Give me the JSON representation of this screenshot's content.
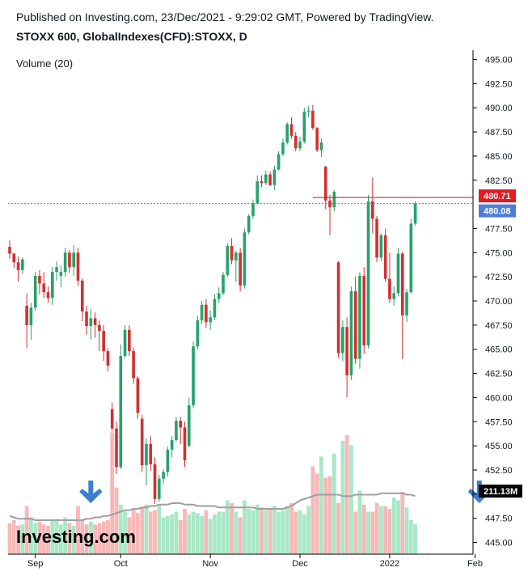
{
  "header": {
    "published": "Published on Investing.com, 23/Dec/2021 - 9:29:02 GMT, Powered by TradingView.",
    "symbol": "STOXX 600, GlobalIndexes(CFD):STOXX, D"
  },
  "colors": {
    "up": "#26a269",
    "down": "#d32f2f",
    "vol_up": "#a8e8c6",
    "vol_down": "#f7b8b8",
    "ma": "#a0a0a0",
    "arrow": "#3a7fd0",
    "tag_red": "#e31b23",
    "tag_blue": "#4f7ed8",
    "tag_black": "#000000"
  },
  "chart_data": {
    "type": "candlestick",
    "volume_label": "Volume (20)",
    "y_ticks": [
      "495.00",
      "492.50",
      "490.00",
      "487.50",
      "485.00",
      "482.50",
      "480.71",
      "480.08",
      "477.50",
      "475.00",
      "472.50",
      "470.00",
      "467.50",
      "465.00",
      "462.50",
      "460.00",
      "457.50",
      "455.00",
      "452.50",
      "450.00",
      "447.50",
      "445.00"
    ],
    "y_min": 445.0,
    "y_max": 495.0,
    "x_ticks": [
      {
        "label": "Sep",
        "index": 6
      },
      {
        "label": "Oct",
        "index": 26
      },
      {
        "label": "Nov",
        "index": 47
      },
      {
        "label": "Dec",
        "index": 68
      },
      {
        "label": "2022",
        "index": 89
      },
      {
        "label": "Feb",
        "index": 109
      }
    ],
    "last_price": {
      "value": 480.08,
      "label": "480.08"
    },
    "high_line": {
      "value": 480.71,
      "label": "480.71"
    },
    "volume_tag": {
      "label": "211.13M"
    },
    "logo": "Investing.com",
    "candles": [
      [
        475.6,
        476.3,
        474.4,
        474.9
      ],
      [
        474.9,
        475.0,
        473.4,
        474.0
      ],
      [
        474.0,
        474.6,
        472.0,
        473.2
      ],
      [
        473.2,
        474.5,
        472.8,
        474.3
      ],
      [
        469.5,
        470.8,
        465.1,
        467.5
      ],
      [
        467.5,
        469.8,
        466.0,
        469.3
      ],
      [
        469.3,
        473.0,
        469.0,
        472.6
      ],
      [
        472.6,
        473.2,
        470.7,
        471.8
      ],
      [
        471.8,
        473.0,
        470.3,
        470.9
      ],
      [
        470.9,
        471.5,
        469.8,
        470.3
      ],
      [
        470.3,
        473.5,
        469.6,
        473.0
      ],
      [
        473.0,
        474.1,
        472.1,
        473.5
      ],
      [
        472.6,
        473.7,
        471.4,
        473.0
      ],
      [
        473.0,
        475.5,
        472.5,
        475.0
      ],
      [
        475.0,
        475.3,
        472.9,
        473.5
      ],
      [
        473.5,
        475.8,
        472.6,
        475.0
      ],
      [
        475.0,
        475.5,
        471.6,
        472.1
      ],
      [
        472.1,
        472.3,
        467.9,
        468.9
      ],
      [
        468.9,
        469.5,
        466.5,
        467.4
      ],
      [
        467.4,
        469.2,
        466.0,
        468.2
      ],
      [
        468.2,
        468.8,
        466.2,
        467.5
      ],
      [
        467.5,
        468.0,
        464.8,
        466.9
      ],
      [
        466.9,
        467.5,
        463.8,
        464.8
      ],
      [
        464.8,
        465.1,
        462.7,
        463.3
      ],
      [
        458.8,
        459.5,
        456.5,
        456.8
      ],
      [
        456.8,
        457.5,
        452.1,
        452.8
      ],
      [
        452.8,
        465.5,
        452.6,
        464.3
      ],
      [
        464.3,
        467.5,
        464.1,
        467.0
      ],
      [
        467.0,
        467.5,
        464.3,
        464.8
      ],
      [
        464.8,
        465.2,
        461.4,
        462.0
      ],
      [
        462.0,
        462.2,
        457.8,
        458.4
      ],
      [
        457.8,
        458.2,
        452.3,
        453.0
      ],
      [
        453.0,
        455.8,
        450.9,
        455.2
      ],
      [
        455.2,
        456.0,
        452.4,
        453.1
      ],
      [
        453.1,
        453.8,
        449.0,
        449.5
      ],
      [
        449.5,
        452.0,
        449.2,
        451.6
      ],
      [
        451.6,
        452.6,
        451.0,
        452.3
      ],
      [
        452.3,
        454.9,
        451.8,
        454.6
      ],
      [
        454.6,
        456.0,
        453.8,
        455.6
      ],
      [
        455.6,
        458.0,
        455.4,
        457.6
      ],
      [
        457.6,
        458.0,
        455.2,
        456.9
      ],
      [
        456.9,
        457.5,
        452.8,
        453.5
      ],
      [
        455.0,
        460.0,
        454.8,
        459.2
      ],
      [
        459.2,
        465.8,
        458.9,
        465.3
      ],
      [
        465.3,
        468.5,
        465.0,
        468.0
      ],
      [
        468.0,
        470.0,
        467.6,
        469.6
      ],
      [
        469.6,
        470.2,
        467.2,
        467.8
      ],
      [
        467.8,
        469.0,
        467.0,
        468.3
      ],
      [
        468.3,
        470.7,
        468.0,
        470.2
      ],
      [
        470.2,
        471.4,
        469.8,
        470.8
      ],
      [
        470.8,
        473.0,
        470.6,
        472.7
      ],
      [
        472.7,
        476.0,
        472.5,
        475.7
      ],
      [
        475.7,
        476.5,
        473.8,
        474.2
      ],
      [
        474.2,
        475.2,
        472.0,
        475.0
      ],
      [
        475.0,
        475.5,
        471.0,
        471.6
      ],
      [
        471.6,
        477.5,
        471.3,
        477.1
      ],
      [
        477.1,
        479.0,
        476.9,
        478.8
      ],
      [
        478.8,
        480.5,
        478.5,
        480.1
      ],
      [
        480.1,
        483.0,
        480.0,
        482.4
      ],
      [
        482.4,
        483.0,
        481.8,
        482.2
      ],
      [
        482.2,
        483.5,
        482.0,
        483.1
      ],
      [
        483.1,
        483.4,
        481.9,
        482.0
      ],
      [
        482.0,
        484.0,
        481.5,
        483.6
      ],
      [
        483.6,
        485.5,
        483.5,
        485.2
      ],
      [
        485.2,
        486.8,
        485.0,
        486.4
      ],
      [
        486.4,
        488.5,
        486.2,
        488.3
      ],
      [
        488.3,
        489.0,
        486.8,
        487.1
      ],
      [
        487.1,
        487.5,
        485.5,
        485.8
      ],
      [
        485.8,
        487.0,
        485.5,
        486.5
      ],
      [
        486.5,
        490.0,
        486.3,
        489.6
      ],
      [
        489.6,
        490.2,
        489.0,
        489.7
      ],
      [
        489.7,
        490.3,
        487.7,
        487.9
      ],
      [
        487.9,
        488.0,
        485.4,
        485.6
      ],
      [
        485.6,
        486.8,
        484.9,
        486.4
      ],
      [
        483.9,
        484.0,
        479.5,
        480.4
      ],
      [
        480.4,
        481.0,
        476.8,
        479.7
      ],
      [
        479.7,
        481.5,
        479.3,
        481.3
      ],
      [
        474.0,
        474.1,
        464.1,
        464.6
      ],
      [
        464.6,
        468.0,
        463.8,
        467.3
      ],
      [
        467.3,
        468.3,
        460.0,
        462.3
      ],
      [
        462.3,
        471.5,
        461.8,
        471.0
      ],
      [
        471.0,
        472.5,
        463.5,
        464.0
      ],
      [
        464.0,
        473.0,
        463.0,
        472.6
      ],
      [
        472.6,
        473.5,
        464.5,
        465.4
      ],
      [
        465.4,
        481.0,
        465.1,
        480.3
      ],
      [
        480.3,
        482.8,
        477.0,
        478.5
      ],
      [
        478.5,
        478.8,
        474.0,
        474.5
      ],
      [
        474.5,
        477.0,
        474.1,
        476.8
      ],
      [
        476.8,
        477.5,
        472.0,
        472.3
      ],
      [
        472.3,
        475.0,
        469.8,
        470.2
      ],
      [
        470.2,
        471.5,
        469.5,
        470.8
      ],
      [
        470.8,
        475.5,
        470.5,
        474.9
      ],
      [
        474.9,
        475.1,
        464.0,
        468.5
      ],
      [
        468.5,
        471.2,
        467.8,
        470.9
      ],
      [
        470.9,
        478.5,
        470.8,
        478.0
      ],
      [
        478.0,
        480.3,
        477.8,
        480.08
      ]
    ],
    "volume_rel": [
      0.22,
      0.24,
      0.2,
      0.21,
      0.34,
      0.26,
      0.22,
      0.23,
      0.21,
      0.2,
      0.24,
      0.25,
      0.21,
      0.26,
      0.22,
      0.2,
      0.34,
      0.24,
      0.21,
      0.23,
      0.21,
      0.22,
      0.23,
      0.24,
      0.86,
      0.47,
      0.35,
      0.3,
      0.26,
      0.32,
      0.29,
      0.33,
      0.35,
      0.3,
      0.31,
      0.35,
      0.26,
      0.27,
      0.28,
      0.3,
      0.24,
      0.32,
      0.28,
      0.3,
      0.29,
      0.27,
      0.31,
      0.25,
      0.28,
      0.3,
      0.3,
      0.38,
      0.36,
      0.3,
      0.26,
      0.38,
      0.32,
      0.31,
      0.35,
      0.33,
      0.31,
      0.32,
      0.34,
      0.3,
      0.31,
      0.34,
      0.36,
      0.3,
      0.31,
      0.28,
      0.34,
      0.62,
      0.57,
      0.69,
      0.54,
      0.55,
      0.71,
      0.36,
      0.8,
      0.84,
      0.77,
      0.3,
      0.45,
      0.35,
      0.3,
      0.3,
      0.36,
      0.34,
      0.34,
      0.32,
      0.4,
      0.38,
      0.44,
      0.33,
      0.24,
      0.21
    ],
    "ma_rel": [
      0.27,
      0.26,
      0.25,
      0.25,
      0.25,
      0.25,
      0.24,
      0.24,
      0.24,
      0.24,
      0.24,
      0.24,
      0.24,
      0.24,
      0.24,
      0.24,
      0.24,
      0.24,
      0.25,
      0.25,
      0.26,
      0.26,
      0.27,
      0.27,
      0.28,
      0.29,
      0.3,
      0.31,
      0.31,
      0.32,
      0.32,
      0.33,
      0.33,
      0.34,
      0.34,
      0.35,
      0.35,
      0.35,
      0.36,
      0.36,
      0.36,
      0.35,
      0.35,
      0.35,
      0.34,
      0.34,
      0.34,
      0.34,
      0.34,
      0.33,
      0.33,
      0.33,
      0.33,
      0.33,
      0.33,
      0.33,
      0.33,
      0.33,
      0.32,
      0.32,
      0.32,
      0.32,
      0.32,
      0.32,
      0.32,
      0.33,
      0.34,
      0.36,
      0.38,
      0.39,
      0.4,
      0.41,
      0.42,
      0.42,
      0.42,
      0.42,
      0.42,
      0.42,
      0.41,
      0.41,
      0.41,
      0.42,
      0.42,
      0.42,
      0.42,
      0.42,
      0.42,
      0.43,
      0.43,
      0.43,
      0.43,
      0.43,
      0.43,
      0.42,
      0.42,
      0.41
    ],
    "arrows": [
      {
        "index": 19
      },
      {
        "index": 110
      }
    ]
  }
}
